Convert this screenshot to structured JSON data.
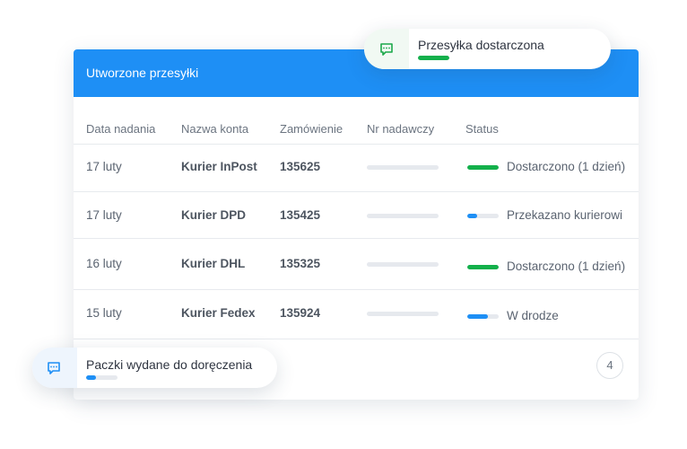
{
  "card": {
    "title": "Utworzone przesyłki",
    "columns": [
      "Data nadania",
      "Nazwa konta",
      "Zamówienie",
      "Nr nadawczy",
      "Status"
    ],
    "rows": [
      {
        "date": "17 luty",
        "account": "Kurier InPost",
        "order": "135625",
        "status": "Dostarczono (1 dzień)"
      },
      {
        "date": "17 luty",
        "account": "Kurier DPD",
        "order": "135425",
        "status": "Przekazano kurierowi"
      },
      {
        "date": "16 luty",
        "account": "Kurier DHL",
        "order": "135325",
        "status": "Dostarczono (1 dzień)"
      },
      {
        "date": "15 luty",
        "account": "Kurier Fedex",
        "order": "135924",
        "status": "W drodze"
      }
    ],
    "page": "4"
  },
  "toasts": [
    {
      "text": "Przesyłka dostarczona"
    },
    {
      "text": "Paczki wydane do doręczenia"
    }
  ]
}
